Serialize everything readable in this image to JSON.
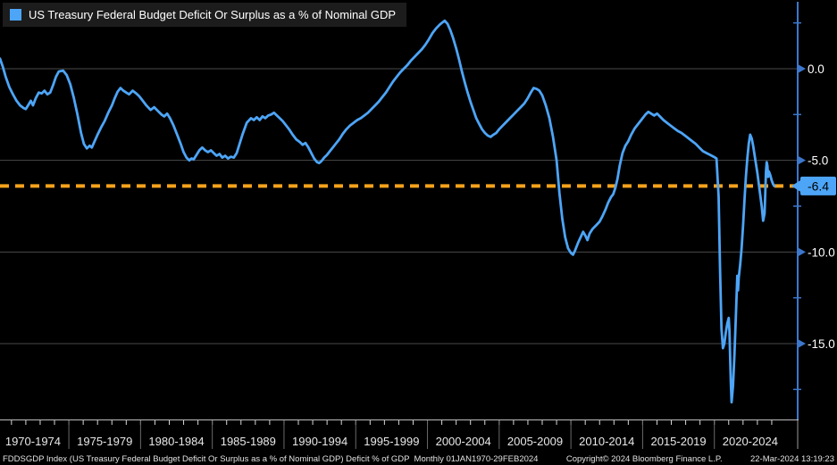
{
  "legend": {
    "label": "US Treasury Federal Budget Deficit Or Surplus as a % of Nominal GDP",
    "swatch_color": "#4da5f7"
  },
  "footer": {
    "left": "FDDSGDP Index (US Treasury Federal Budget Deficit Or Surplus as a % of Nominal GDP) Deficit % of GDP  Monthly 01JAN1970-29FEB2024",
    "center": "Copyright© 2024 Bloomberg Finance L.P.",
    "right": "22-Mar-2024 13:19:23"
  },
  "theme": {
    "background": "#000000",
    "line_blue": "#4da5f7",
    "axis_blue": "#3c77cc",
    "last_value_orange": "#f6a21b",
    "grid_gray": "#4a4a4a",
    "text_white": "#ffffff",
    "badge_text": "#000000",
    "x_label_gray": "#e8e8e8",
    "separator_gray": "#6a6a6a"
  },
  "y_axis": {
    "major_ticks": [
      "0.0",
      "-5.0",
      "-10.0",
      "-15.0"
    ],
    "major_values": [
      0,
      -5,
      -10,
      -15
    ],
    "minor_values": [
      2.5,
      -2.5,
      -7.5,
      -12.5,
      -17.5
    ],
    "last_value_label": "-6.4"
  },
  "x_axis": {
    "labels": [
      "1970-1974",
      "1975-1979",
      "1980-1984",
      "1985-1989",
      "1990-1994",
      "1995-1999",
      "2000-2004",
      "2005-2009",
      "2010-2014",
      "2015-2019",
      "2020-2024"
    ]
  },
  "chart_data": {
    "type": "line",
    "title": "US Treasury Federal Budget Deficit Or Surplus as a % of Nominal GDP",
    "ticker": "FDDSGDP Index",
    "xlabel": "",
    "ylabel": "Deficit % of GDP",
    "frequency": "Monthly",
    "period": "01JAN1970-29FEB2024",
    "grid": "horizontal-major",
    "legend_position": "top-left",
    "xlim": [
      1970.2,
      2025.81
    ],
    "ylim": [
      -19.14,
      3.75
    ],
    "y_ticks": [
      0,
      -5,
      -10,
      -15
    ],
    "last_value": -6.4,
    "last_value_line": -6.4,
    "series": [
      {
        "name": "US Treasury Federal Budget Deficit Or Surplus as a % of Nominal GDP",
        "color": "#4da5f7",
        "points": [
          [
            1970.2,
            0.55
          ],
          [
            1970.4,
            0.1
          ],
          [
            1970.6,
            -0.45
          ],
          [
            1970.85,
            -1.0
          ],
          [
            1971.1,
            -1.4
          ],
          [
            1971.35,
            -1.75
          ],
          [
            1971.6,
            -2.0
          ],
          [
            1971.85,
            -2.15
          ],
          [
            1972.0,
            -2.2
          ],
          [
            1972.2,
            -1.95
          ],
          [
            1972.35,
            -1.75
          ],
          [
            1972.5,
            -2.0
          ],
          [
            1972.7,
            -1.6
          ],
          [
            1972.9,
            -1.3
          ],
          [
            1973.1,
            -1.35
          ],
          [
            1973.3,
            -1.2
          ],
          [
            1973.5,
            -1.4
          ],
          [
            1973.7,
            -1.3
          ],
          [
            1973.9,
            -0.9
          ],
          [
            1974.1,
            -0.45
          ],
          [
            1974.3,
            -0.15
          ],
          [
            1974.6,
            -0.1
          ],
          [
            1974.85,
            -0.35
          ],
          [
            1975.1,
            -0.85
          ],
          [
            1975.35,
            -1.6
          ],
          [
            1975.6,
            -2.5
          ],
          [
            1975.85,
            -3.5
          ],
          [
            1976.05,
            -4.1
          ],
          [
            1976.25,
            -4.35
          ],
          [
            1976.45,
            -4.2
          ],
          [
            1976.6,
            -4.3
          ],
          [
            1976.8,
            -3.95
          ],
          [
            1977.0,
            -3.6
          ],
          [
            1977.25,
            -3.2
          ],
          [
            1977.5,
            -2.85
          ],
          [
            1977.75,
            -2.4
          ],
          [
            1978.0,
            -2.0
          ],
          [
            1978.2,
            -1.6
          ],
          [
            1978.4,
            -1.25
          ],
          [
            1978.6,
            -1.05
          ],
          [
            1978.8,
            -1.2
          ],
          [
            1979.0,
            -1.3
          ],
          [
            1979.2,
            -1.4
          ],
          [
            1979.45,
            -1.2
          ],
          [
            1979.7,
            -1.35
          ],
          [
            1979.9,
            -1.5
          ],
          [
            1980.15,
            -1.75
          ],
          [
            1980.4,
            -2.0
          ],
          [
            1980.7,
            -2.25
          ],
          [
            1980.95,
            -2.1
          ],
          [
            1981.2,
            -2.3
          ],
          [
            1981.45,
            -2.5
          ],
          [
            1981.65,
            -2.6
          ],
          [
            1981.85,
            -2.45
          ],
          [
            1982.05,
            -2.7
          ],
          [
            1982.3,
            -3.1
          ],
          [
            1982.55,
            -3.6
          ],
          [
            1982.8,
            -4.1
          ],
          [
            1983.0,
            -4.55
          ],
          [
            1983.2,
            -4.85
          ],
          [
            1983.4,
            -5.0
          ],
          [
            1983.55,
            -4.9
          ],
          [
            1983.7,
            -4.95
          ],
          [
            1983.9,
            -4.7
          ],
          [
            1984.1,
            -4.45
          ],
          [
            1984.3,
            -4.3
          ],
          [
            1984.5,
            -4.45
          ],
          [
            1984.7,
            -4.55
          ],
          [
            1984.9,
            -4.45
          ],
          [
            1985.1,
            -4.6
          ],
          [
            1985.3,
            -4.75
          ],
          [
            1985.5,
            -4.65
          ],
          [
            1985.7,
            -4.85
          ],
          [
            1985.9,
            -4.75
          ],
          [
            1986.1,
            -4.9
          ],
          [
            1986.3,
            -4.8
          ],
          [
            1986.5,
            -4.85
          ],
          [
            1986.7,
            -4.6
          ],
          [
            1986.9,
            -4.1
          ],
          [
            1987.1,
            -3.6
          ],
          [
            1987.4,
            -2.95
          ],
          [
            1987.7,
            -2.7
          ],
          [
            1987.9,
            -2.8
          ],
          [
            1988.1,
            -2.65
          ],
          [
            1988.3,
            -2.8
          ],
          [
            1988.5,
            -2.6
          ],
          [
            1988.7,
            -2.7
          ],
          [
            1988.9,
            -2.55
          ],
          [
            1989.1,
            -2.5
          ],
          [
            1989.3,
            -2.4
          ],
          [
            1989.5,
            -2.55
          ],
          [
            1989.7,
            -2.7
          ],
          [
            1989.9,
            -2.85
          ],
          [
            1990.1,
            -3.05
          ],
          [
            1990.35,
            -3.3
          ],
          [
            1990.6,
            -3.6
          ],
          [
            1990.85,
            -3.85
          ],
          [
            1991.1,
            -4.0
          ],
          [
            1991.3,
            -4.15
          ],
          [
            1991.5,
            -4.05
          ],
          [
            1991.7,
            -4.3
          ],
          [
            1991.9,
            -4.6
          ],
          [
            1992.1,
            -4.9
          ],
          [
            1992.3,
            -5.1
          ],
          [
            1992.45,
            -5.15
          ],
          [
            1992.6,
            -5.05
          ],
          [
            1992.8,
            -4.85
          ],
          [
            1993.0,
            -4.7
          ],
          [
            1993.2,
            -4.5
          ],
          [
            1993.4,
            -4.3
          ],
          [
            1993.6,
            -4.1
          ],
          [
            1993.85,
            -3.85
          ],
          [
            1994.1,
            -3.55
          ],
          [
            1994.35,
            -3.3
          ],
          [
            1994.6,
            -3.1
          ],
          [
            1994.85,
            -2.95
          ],
          [
            1995.1,
            -2.8
          ],
          [
            1995.35,
            -2.7
          ],
          [
            1995.6,
            -2.55
          ],
          [
            1995.85,
            -2.4
          ],
          [
            1996.1,
            -2.2
          ],
          [
            1996.35,
            -2.0
          ],
          [
            1996.6,
            -1.8
          ],
          [
            1996.85,
            -1.55
          ],
          [
            1997.1,
            -1.3
          ],
          [
            1997.35,
            -1.0
          ],
          [
            1997.6,
            -0.7
          ],
          [
            1997.85,
            -0.45
          ],
          [
            1998.1,
            -0.2
          ],
          [
            1998.35,
            0.0
          ],
          [
            1998.6,
            0.2
          ],
          [
            1998.85,
            0.45
          ],
          [
            1999.1,
            0.65
          ],
          [
            1999.35,
            0.85
          ],
          [
            1999.6,
            1.05
          ],
          [
            1999.85,
            1.3
          ],
          [
            2000.1,
            1.6
          ],
          [
            2000.35,
            1.95
          ],
          [
            2000.6,
            2.2
          ],
          [
            2000.85,
            2.4
          ],
          [
            2001.0,
            2.5
          ],
          [
            2001.2,
            2.62
          ],
          [
            2001.4,
            2.45
          ],
          [
            2001.6,
            2.1
          ],
          [
            2001.8,
            1.65
          ],
          [
            2002.0,
            1.1
          ],
          [
            2002.2,
            0.5
          ],
          [
            2002.4,
            -0.15
          ],
          [
            2002.6,
            -0.75
          ],
          [
            2002.8,
            -1.3
          ],
          [
            2003.0,
            -1.8
          ],
          [
            2003.2,
            -2.25
          ],
          [
            2003.4,
            -2.7
          ],
          [
            2003.6,
            -3.0
          ],
          [
            2003.8,
            -3.3
          ],
          [
            2004.0,
            -3.5
          ],
          [
            2004.2,
            -3.65
          ],
          [
            2004.4,
            -3.72
          ],
          [
            2004.6,
            -3.6
          ],
          [
            2004.8,
            -3.5
          ],
          [
            2005.0,
            -3.3
          ],
          [
            2005.25,
            -3.1
          ],
          [
            2005.5,
            -2.9
          ],
          [
            2005.75,
            -2.7
          ],
          [
            2006.0,
            -2.5
          ],
          [
            2006.25,
            -2.3
          ],
          [
            2006.5,
            -2.1
          ],
          [
            2006.75,
            -1.9
          ],
          [
            2007.0,
            -1.6
          ],
          [
            2007.2,
            -1.3
          ],
          [
            2007.4,
            -1.05
          ],
          [
            2007.6,
            -1.1
          ],
          [
            2007.8,
            -1.2
          ],
          [
            2008.0,
            -1.45
          ],
          [
            2008.25,
            -2.0
          ],
          [
            2008.5,
            -2.7
          ],
          [
            2008.75,
            -3.7
          ],
          [
            2009.0,
            -5.0
          ],
          [
            2009.2,
            -6.8
          ],
          [
            2009.4,
            -8.2
          ],
          [
            2009.6,
            -9.2
          ],
          [
            2009.8,
            -9.8
          ],
          [
            2010.0,
            -10.05
          ],
          [
            2010.15,
            -10.15
          ],
          [
            2010.3,
            -9.9
          ],
          [
            2010.5,
            -9.5
          ],
          [
            2010.7,
            -9.15
          ],
          [
            2010.85,
            -8.9
          ],
          [
            2011.0,
            -9.1
          ],
          [
            2011.15,
            -9.35
          ],
          [
            2011.3,
            -9.0
          ],
          [
            2011.5,
            -8.75
          ],
          [
            2011.75,
            -8.55
          ],
          [
            2012.0,
            -8.35
          ],
          [
            2012.2,
            -8.05
          ],
          [
            2012.4,
            -7.7
          ],
          [
            2012.6,
            -7.3
          ],
          [
            2012.8,
            -7.0
          ],
          [
            2012.95,
            -6.85
          ],
          [
            2013.1,
            -6.5
          ],
          [
            2013.25,
            -6.0
          ],
          [
            2013.4,
            -5.3
          ],
          [
            2013.6,
            -4.6
          ],
          [
            2013.8,
            -4.2
          ],
          [
            2014.0,
            -3.95
          ],
          [
            2014.2,
            -3.6
          ],
          [
            2014.45,
            -3.25
          ],
          [
            2014.7,
            -3.0
          ],
          [
            2014.95,
            -2.75
          ],
          [
            2015.2,
            -2.5
          ],
          [
            2015.4,
            -2.35
          ],
          [
            2015.6,
            -2.45
          ],
          [
            2015.8,
            -2.55
          ],
          [
            2016.0,
            -2.45
          ],
          [
            2016.2,
            -2.6
          ],
          [
            2016.45,
            -2.8
          ],
          [
            2016.7,
            -2.95
          ],
          [
            2016.95,
            -3.1
          ],
          [
            2017.2,
            -3.25
          ],
          [
            2017.45,
            -3.4
          ],
          [
            2017.7,
            -3.5
          ],
          [
            2017.95,
            -3.65
          ],
          [
            2018.2,
            -3.8
          ],
          [
            2018.45,
            -3.95
          ],
          [
            2018.7,
            -4.1
          ],
          [
            2018.95,
            -4.3
          ],
          [
            2019.2,
            -4.5
          ],
          [
            2019.45,
            -4.6
          ],
          [
            2019.7,
            -4.7
          ],
          [
            2019.95,
            -4.8
          ],
          [
            2020.15,
            -4.9
          ],
          [
            2020.3,
            -7.0
          ],
          [
            2020.4,
            -11.0
          ],
          [
            2020.5,
            -14.2
          ],
          [
            2020.6,
            -15.25
          ],
          [
            2020.7,
            -15.0
          ],
          [
            2020.8,
            -14.4
          ],
          [
            2020.9,
            -13.9
          ],
          [
            2021.0,
            -13.6
          ],
          [
            2021.05,
            -14.3
          ],
          [
            2021.1,
            -15.8
          ],
          [
            2021.15,
            -17.2
          ],
          [
            2021.2,
            -18.2
          ],
          [
            2021.3,
            -17.3
          ],
          [
            2021.4,
            -15.6
          ],
          [
            2021.5,
            -13.5
          ],
          [
            2021.55,
            -12.4
          ],
          [
            2021.6,
            -11.3
          ],
          [
            2021.65,
            -12.1
          ],
          [
            2021.7,
            -11.4
          ],
          [
            2021.8,
            -10.7
          ],
          [
            2021.9,
            -9.8
          ],
          [
            2022.0,
            -8.6
          ],
          [
            2022.1,
            -7.2
          ],
          [
            2022.2,
            -5.9
          ],
          [
            2022.3,
            -4.9
          ],
          [
            2022.4,
            -4.1
          ],
          [
            2022.5,
            -3.6
          ],
          [
            2022.6,
            -3.8
          ],
          [
            2022.7,
            -4.2
          ],
          [
            2022.8,
            -4.7
          ],
          [
            2022.9,
            -5.2
          ],
          [
            2023.0,
            -5.7
          ],
          [
            2023.1,
            -6.3
          ],
          [
            2023.2,
            -6.9
          ],
          [
            2023.3,
            -7.5
          ],
          [
            2023.4,
            -8.3
          ],
          [
            2023.5,
            -7.9
          ],
          [
            2023.55,
            -6.8
          ],
          [
            2023.6,
            -5.6
          ],
          [
            2023.65,
            -5.1
          ],
          [
            2023.7,
            -5.3
          ],
          [
            2023.75,
            -5.9
          ],
          [
            2023.8,
            -5.6
          ],
          [
            2023.9,
            -5.8
          ],
          [
            2024.0,
            -6.1
          ],
          [
            2024.1,
            -6.3
          ],
          [
            2024.17,
            -6.4
          ]
        ]
      }
    ]
  }
}
